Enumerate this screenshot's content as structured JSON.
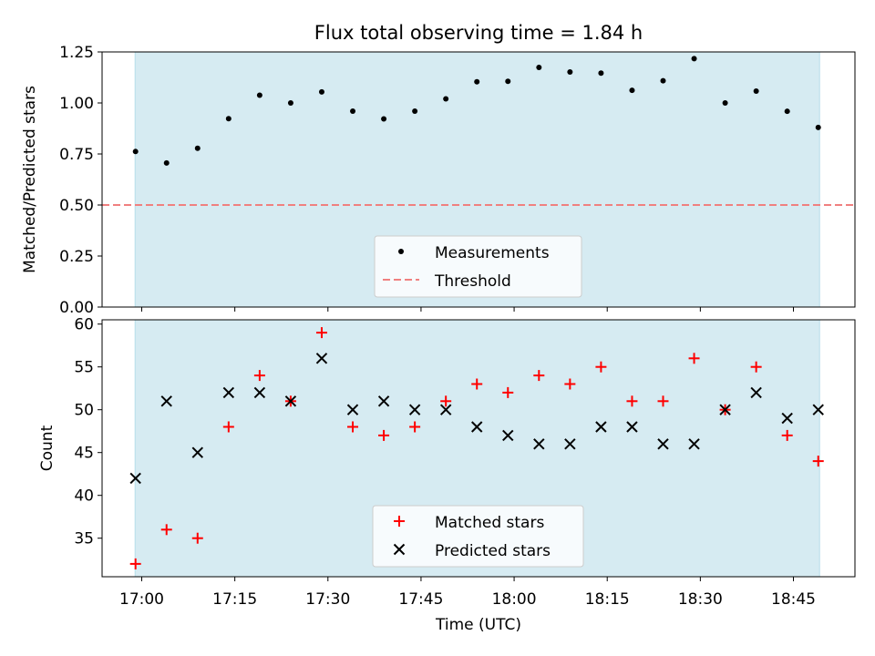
{
  "title": "Flux total observing time = 1.84 h",
  "colors": {
    "band": "#add8e6",
    "measurement": "#000000",
    "threshold": "#f08080",
    "matched": "#ff0000",
    "predicted": "#000000"
  },
  "chart_data": [
    {
      "type": "scatter",
      "ylabel": "Matched/Predicted stars",
      "ylim": [
        0,
        1.25
      ],
      "yticks": [
        "0.00",
        "0.25",
        "0.50",
        "0.75",
        "1.00",
        "1.25"
      ],
      "legend_placement": "bottom-center",
      "series": [
        {
          "name": "Measurements",
          "x": [
            "16:59",
            "17:04",
            "17:09",
            "17:14",
            "17:19",
            "17:24",
            "17:29",
            "17:34",
            "17:39",
            "17:44",
            "17:49",
            "17:54",
            "17:59",
            "18:04",
            "18:09",
            "18:14",
            "18:19",
            "18:24",
            "18:29",
            "18:34",
            "18:39",
            "18:44",
            "18:49"
          ],
          "values": [
            0.762,
            0.706,
            0.778,
            0.923,
            1.038,
            1.0,
            1.054,
            0.96,
            0.922,
            0.96,
            1.02,
            1.104,
            1.106,
            1.174,
            1.152,
            1.146,
            1.062,
            1.109,
            1.217,
            1.0,
            1.058,
            0.959,
            0.88
          ]
        }
      ],
      "threshold": {
        "name": "Threshold",
        "value": 0.5
      }
    },
    {
      "type": "scatter",
      "ylabel": "Count",
      "xlabel": "Time (UTC)",
      "ylim": [
        30.5,
        60.5
      ],
      "yticks": [
        "35",
        "40",
        "45",
        "50",
        "55",
        "60"
      ],
      "xticks": [
        "17:00",
        "17:15",
        "17:30",
        "17:45",
        "18:00",
        "18:15",
        "18:30",
        "18:45"
      ],
      "legend_placement": "bottom-center",
      "series": [
        {
          "name": "Matched stars",
          "x": [
            "16:59",
            "17:04",
            "17:09",
            "17:14",
            "17:19",
            "17:24",
            "17:29",
            "17:34",
            "17:39",
            "17:44",
            "17:49",
            "17:54",
            "17:59",
            "18:04",
            "18:09",
            "18:14",
            "18:19",
            "18:24",
            "18:29",
            "18:34",
            "18:39",
            "18:44",
            "18:49"
          ],
          "values": [
            32,
            36,
            35,
            48,
            54,
            51,
            59,
            48,
            47,
            48,
            51,
            53,
            52,
            54,
            53,
            55,
            51,
            51,
            56,
            50,
            55,
            47,
            44
          ]
        },
        {
          "name": "Predicted stars",
          "x": [
            "16:59",
            "17:04",
            "17:09",
            "17:14",
            "17:19",
            "17:24",
            "17:29",
            "17:34",
            "17:39",
            "17:44",
            "17:49",
            "17:54",
            "17:59",
            "18:04",
            "18:09",
            "18:14",
            "18:19",
            "18:24",
            "18:29",
            "18:34",
            "18:39",
            "18:44",
            "18:49"
          ],
          "values": [
            42,
            51,
            45,
            52,
            52,
            51,
            56,
            50,
            51,
            50,
            50,
            48,
            47,
            46,
            46,
            48,
            48,
            46,
            46,
            50,
            52,
            49,
            50
          ]
        }
      ]
    }
  ]
}
